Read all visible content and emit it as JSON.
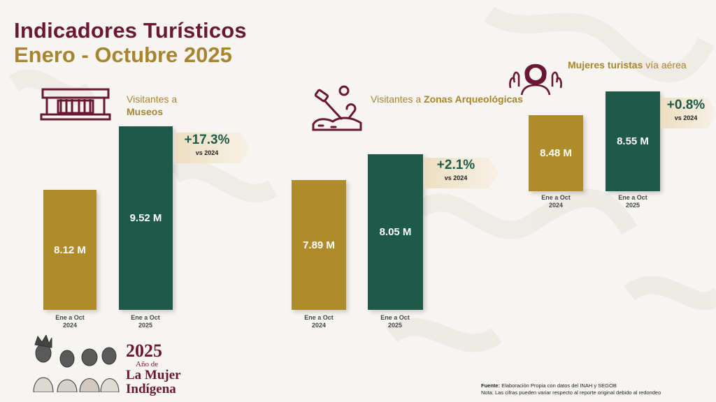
{
  "header": {
    "title_line1": "Indicadores Turísticos",
    "title_line2": "Enero - Octubre 2025"
  },
  "panels": [
    {
      "icon": "museum-icon",
      "label_plain": "Visitantes a",
      "label_bold": "Museos",
      "change": "+17.3%",
      "change_ref": "vs 2024",
      "bar_labels": [
        "8.12 M",
        "9.52 M"
      ],
      "categories": [
        "Ene a Oct\n2024",
        "Ene a Oct\n2025"
      ]
    },
    {
      "icon": "archaeology-icon",
      "label_plain": "Visitantes a",
      "label_bold": "Zonas Arqueológicas",
      "change": "+2.1%",
      "change_ref": "vs 2024",
      "bar_labels": [
        "7.89 M",
        "8.05 M"
      ],
      "categories": [
        "Ene a Oct\n2024",
        "Ene a Oct\n2025"
      ]
    },
    {
      "icon": "woman-traveler-icon",
      "label_bold": "Mujeres turistas",
      "label_plain": "vía aérea",
      "change": "+0.8%",
      "change_ref": "vs 2024",
      "bar_labels": [
        "8.48 M",
        "8.55 M"
      ],
      "categories": [
        "Ene a Oct\n2024",
        "Ene a Oct\n2025"
      ]
    }
  ],
  "chart_data": [
    {
      "type": "bar",
      "title": "Visitantes a Museos",
      "categories": [
        "Ene a Oct 2024",
        "Ene a Oct 2025"
      ],
      "values": [
        8.12,
        9.52
      ],
      "unit": "M",
      "change_label": "+17.3% vs 2024",
      "colors": [
        "#b08b2c",
        "#1d5a49"
      ]
    },
    {
      "type": "bar",
      "title": "Visitantes a Zonas Arqueológicas",
      "categories": [
        "Ene a Oct 2024",
        "Ene a Oct 2025"
      ],
      "values": [
        7.89,
        8.05
      ],
      "unit": "M",
      "change_label": "+2.1% vs 2024",
      "colors": [
        "#b08b2c",
        "#1d5a49"
      ]
    },
    {
      "type": "bar",
      "title": "Mujeres turistas vía aérea",
      "categories": [
        "Ene a Oct 2024",
        "Ene a Oct 2025"
      ],
      "values": [
        8.48,
        8.55
      ],
      "unit": "M",
      "change_label": "+0.8% vs 2024",
      "colors": [
        "#b08b2c",
        "#1d5a49"
      ]
    }
  ],
  "branding": {
    "year": "2025",
    "line2": "Año de",
    "line3": "La Mujer",
    "line4": "Indígena"
  },
  "footer": {
    "source_label": "Fuente:",
    "source_text": "Elaboración Propia con datos del INAH y SEGOB",
    "note": "Nota: Las cifras pueden variar respecto al reporte original debido al redondeo"
  },
  "colors": {
    "maroon": "#6b1733",
    "gold": "#b08b2c",
    "green": "#1d5a49"
  }
}
